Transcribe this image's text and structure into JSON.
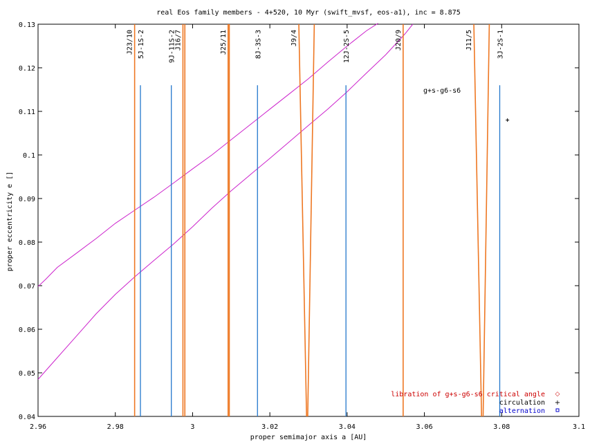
{
  "chart_data": {
    "type": "line",
    "title": "real Eos family members - 4+520, 10 Myr (swift_mvsf, eos-a1), inc = 8.875",
    "xlabel": "proper semimajor axis a [AU]",
    "ylabel": "proper eccentricity e []",
    "xlim": [
      2.96,
      3.1
    ],
    "ylim": [
      0.04,
      0.13
    ],
    "x_ticks": [
      2.96,
      2.98,
      3.0,
      3.02,
      3.04,
      3.06,
      3.08,
      3.1
    ],
    "x_tick_labels": [
      "2.96",
      "2.98",
      "3",
      "3.02",
      "3.04",
      "3.06",
      "3.08",
      "3.1"
    ],
    "y_ticks": [
      0.04,
      0.05,
      0.06,
      0.07,
      0.08,
      0.09,
      0.1,
      0.11,
      0.12,
      0.13
    ],
    "y_tick_labels": [
      "0.04",
      "0.05",
      "0.06",
      "0.07",
      "0.08",
      "0.09",
      "0.1",
      "0.11",
      "0.12",
      "0.13"
    ],
    "grid": false,
    "legend_position": "bottom-right",
    "legend": [
      {
        "label": "libration of g+s-g6-s6 critical angle",
        "color": "#cc0000",
        "marker": "diamond"
      },
      {
        "label": "circulation",
        "color": "#000000",
        "marker": "plus"
      },
      {
        "label": "alternation",
        "color": "#0000cc",
        "marker": "square"
      }
    ],
    "annotation": "g+s-g6-s6",
    "circulation_points": [
      {
        "x": 3.0815,
        "y": 0.108
      }
    ],
    "resonance_colors": {
      "jupiter_mmr": "#ee7722",
      "three_body": "#2277cc",
      "curves": "#cc22cc"
    },
    "jupiter_resonances": [
      {
        "label": "J23/10",
        "lines": [
          {
            "x": [
              2.985,
              2.985
            ]
          }
        ]
      },
      {
        "label": "J16/7",
        "lines": [
          {
            "x": [
              2.9975,
              2.9975
            ]
          },
          {
            "x": [
              2.998,
              2.998
            ]
          }
        ]
      },
      {
        "label": "J25/11",
        "lines": [
          {
            "x": [
              3.0092,
              3.0092
            ]
          },
          {
            "x": [
              3.0095,
              3.0095
            ]
          }
        ]
      },
      {
        "label": "J9/4",
        "lines": [
          {
            "x": [
              3.0275,
              3.0295
            ]
          },
          {
            "x": [
              3.0315,
              3.0298
            ]
          }
        ]
      },
      {
        "label": "J20/9",
        "lines": [
          {
            "x": [
              3.0545,
              3.0545
            ]
          }
        ]
      },
      {
        "label": "J11/5",
        "lines": [
          {
            "x": [
              3.0728,
              3.0748
            ]
          },
          {
            "x": [
              3.0768,
              3.0752
            ]
          }
        ]
      }
    ],
    "three_body_resonances": [
      {
        "label": "5J-1S-2",
        "x": 2.9865,
        "top": 0.116
      },
      {
        "label": "9J-11S-2",
        "x": 2.9945,
        "top": 0.116
      },
      {
        "label": "8J-3S-3",
        "x": 3.0168,
        "top": 0.116
      },
      {
        "label": "12J-2S-5",
        "x": 3.0397,
        "top": 0.116
      },
      {
        "label": "3J-2S-1",
        "x": 3.0795,
        "top": 0.116
      }
    ],
    "series": [
      {
        "x": [
          2.96,
          2.962,
          2.965,
          2.97,
          2.975,
          2.98,
          2.985,
          2.99,
          2.995,
          3.0,
          3.005,
          3.01,
          3.015,
          3.02,
          3.025,
          3.03,
          3.035,
          3.04,
          3.045,
          3.048
        ],
        "y": [
          0.0698,
          0.0715,
          0.0742,
          0.0775,
          0.0808,
          0.0843,
          0.0873,
          0.0903,
          0.0935,
          0.0968,
          0.1,
          0.1035,
          0.107,
          0.1105,
          0.114,
          0.1175,
          0.1213,
          0.125,
          0.1285,
          0.1302
        ]
      },
      {
        "x": [
          2.96,
          2.965,
          2.97,
          2.975,
          2.98,
          2.985,
          2.99,
          2.995,
          3.0,
          3.005,
          3.01,
          3.015,
          3.02,
          3.025,
          3.03,
          3.035,
          3.04,
          3.045,
          3.05,
          3.055,
          3.057
        ],
        "y": [
          0.0485,
          0.0535,
          0.0585,
          0.0635,
          0.068,
          0.072,
          0.0758,
          0.0795,
          0.0835,
          0.0878,
          0.0918,
          0.0955,
          0.0992,
          0.103,
          0.1068,
          0.1105,
          0.1145,
          0.1188,
          0.123,
          0.1278,
          0.13
        ]
      }
    ]
  }
}
